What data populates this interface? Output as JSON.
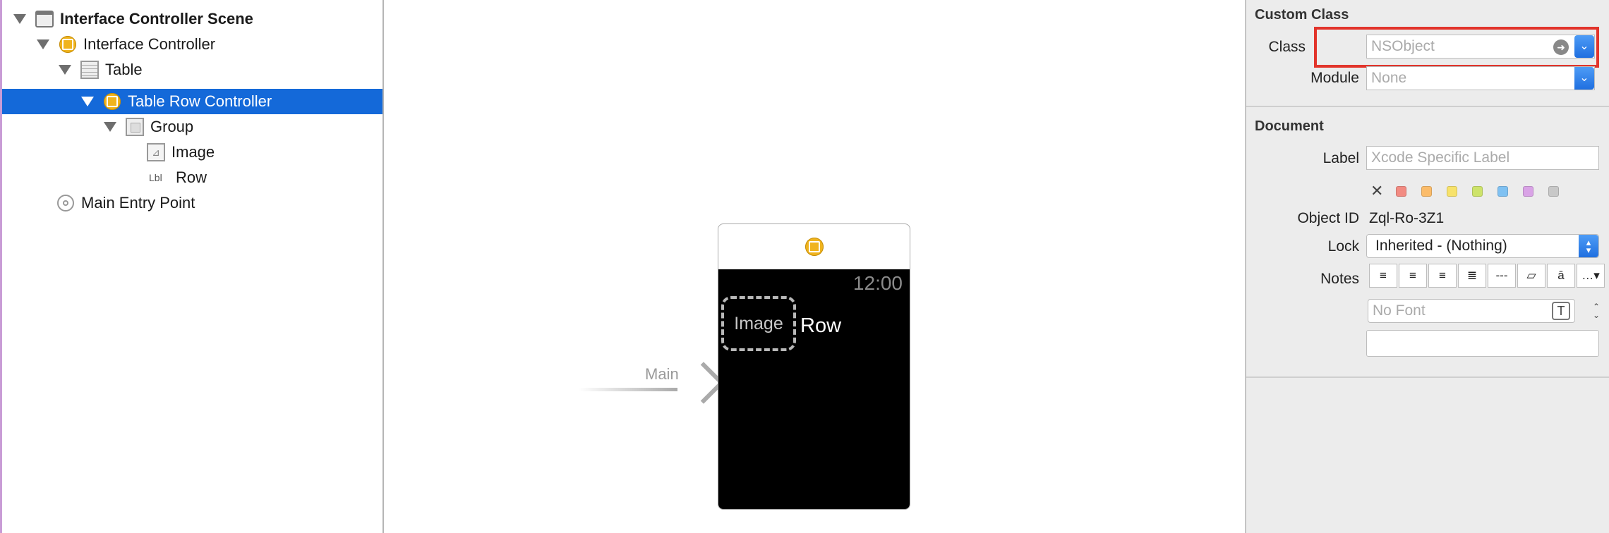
{
  "outline": {
    "items": [
      {
        "label": "Interface Controller Scene",
        "icon": "scene-icon"
      },
      {
        "label": "Interface Controller",
        "icon": "interface-controller-icon"
      },
      {
        "label": "Table",
        "icon": "table-icon"
      },
      {
        "label": "Table Row Controller",
        "icon": "row-controller-icon"
      },
      {
        "label": "Group",
        "icon": "group-icon"
      },
      {
        "label": "Image",
        "icon": "image-icon"
      },
      {
        "label": "Row",
        "icon": "label-icon",
        "icon_text": "Lbl"
      },
      {
        "label": "Main Entry Point",
        "icon": "entry-point-icon"
      }
    ],
    "selected_color": "#1469d9"
  },
  "canvas": {
    "entry_label": "Main",
    "watch": {
      "time": "12:00",
      "image_placeholder": "Image",
      "row_label": "Row"
    }
  },
  "inspector": {
    "custom_class": {
      "title": "Custom Class",
      "class_label": "Class",
      "class_placeholder": "NSObject",
      "module_label": "Module",
      "module_placeholder": "None",
      "highlight_color": "#e2342b"
    },
    "document": {
      "title": "Document",
      "label_label": "Label",
      "label_placeholder": "Xcode Specific Label",
      "clear_symbol": "✕",
      "swatch_colors": [
        "#f28b82",
        "#fbbc6a",
        "#f7e26b",
        "#cde36a",
        "#7fc1f2",
        "#d9a3e6",
        "#c8c8c8"
      ],
      "object_id_label": "Object ID",
      "object_id_value": "Zql-Ro-3Z1",
      "lock_label": "Lock",
      "lock_value": "Inherited - (Nothing)",
      "notes_label": "Notes",
      "font_placeholder": "No Font"
    }
  }
}
